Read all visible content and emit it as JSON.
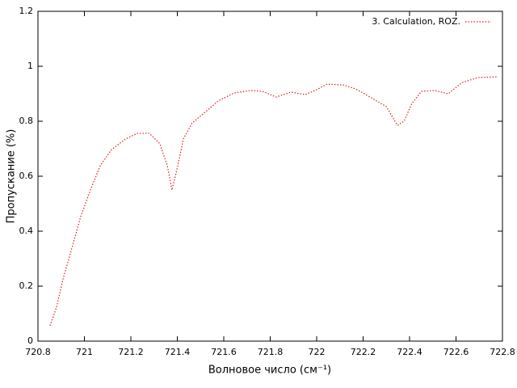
{
  "chart_data": {
    "type": "line",
    "x_label": "Волновое число (см⁻¹)",
    "y_label": "Пропускание (%)",
    "xlim": [
      720.8,
      722.8
    ],
    "xticks": [
      720.8,
      721,
      721.2,
      721.4,
      721.6,
      721.8,
      722,
      722.2,
      722.4,
      722.6,
      722.8
    ],
    "ylim": [
      0,
      1.2
    ],
    "yticks": [
      0,
      0.2,
      0.4,
      0.6,
      0.8,
      1,
      1.2
    ],
    "legend": "top-right",
    "series": [
      {
        "name": "3. Calculation, ROZ.",
        "color": "#e41a1c",
        "x": [
          720.852,
          720.88,
          720.908,
          720.943,
          720.984,
          721.026,
          721.068,
          721.117,
          721.176,
          721.228,
          721.28,
          721.325,
          721.357,
          721.377,
          721.402,
          721.426,
          721.464,
          721.523,
          721.576,
          721.645,
          721.715,
          721.767,
          721.826,
          721.889,
          721.951,
          721.993,
          722.045,
          722.115,
          722.167,
          722.23,
          722.3,
          722.348,
          722.376,
          722.41,
          722.452,
          722.508,
          722.567,
          722.626,
          722.696,
          722.776
        ],
        "values": [
          0.056,
          0.124,
          0.226,
          0.33,
          0.453,
          0.55,
          0.638,
          0.697,
          0.735,
          0.756,
          0.756,
          0.718,
          0.638,
          0.55,
          0.638,
          0.735,
          0.794,
          0.835,
          0.874,
          0.903,
          0.912,
          0.909,
          0.888,
          0.906,
          0.897,
          0.912,
          0.935,
          0.932,
          0.918,
          0.888,
          0.853,
          0.785,
          0.8,
          0.865,
          0.909,
          0.912,
          0.9,
          0.941,
          0.959,
          0.962
        ]
      }
    ]
  }
}
